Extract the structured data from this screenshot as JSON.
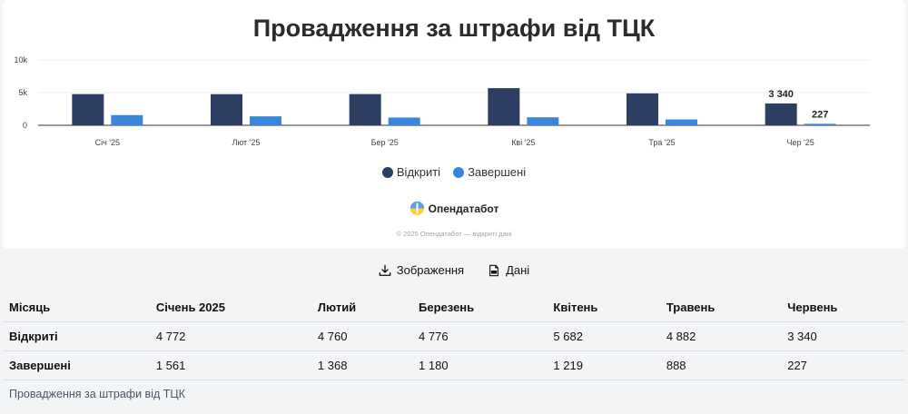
{
  "title": "Провадження за штрафи від ТЦК",
  "chart_data": {
    "type": "bar",
    "categories": [
      "Січ '25",
      "Лют '25",
      "Бер '25",
      "Кві '25",
      "Тра '25",
      "Чер '25"
    ],
    "series": [
      {
        "name": "Відкриті",
        "values": [
          4772,
          4760,
          4776,
          5682,
          4882,
          3340
        ],
        "color": "#2d3e63"
      },
      {
        "name": "Завершені",
        "values": [
          1561,
          1368,
          1180,
          1219,
          888,
          227
        ],
        "color": "#3a86dc"
      }
    ],
    "ylim": [
      0,
      10000
    ],
    "y_ticks": [
      {
        "value": 0,
        "label": "0"
      },
      {
        "value": 5000,
        "label": "5k"
      },
      {
        "value": 10000,
        "label": "10k"
      }
    ],
    "data_labels": [
      {
        "series": 0,
        "index": 5,
        "text": "3 340"
      },
      {
        "series": 1,
        "index": 5,
        "text": "227"
      }
    ],
    "grid": true,
    "legend_position": "bottom-center"
  },
  "brand": {
    "name": "Опендатабот",
    "logo_icon": "opendatabot-logo-icon"
  },
  "copyright": "© 2025 Опендатабот — відкриті дані",
  "actions": {
    "image_label": "Зображення",
    "data_label": "Дані",
    "image_icon": "download-icon",
    "data_icon": "file-icon"
  },
  "table": {
    "headers": [
      "Місяць",
      "Січень 2025",
      "Лютий",
      "Березень",
      "Квітень",
      "Травень",
      "Червень"
    ],
    "rows": [
      {
        "label": "Відкриті",
        "cells": [
          "4 772",
          "4 760",
          "4 776",
          "5 682",
          "4 882",
          "3 340"
        ]
      },
      {
        "label": "Завершені",
        "cells": [
          "1 561",
          "1 368",
          "1 180",
          "1 219",
          "888",
          "227"
        ]
      }
    ]
  },
  "caption": "Провадження за штрафи від ТЦК"
}
